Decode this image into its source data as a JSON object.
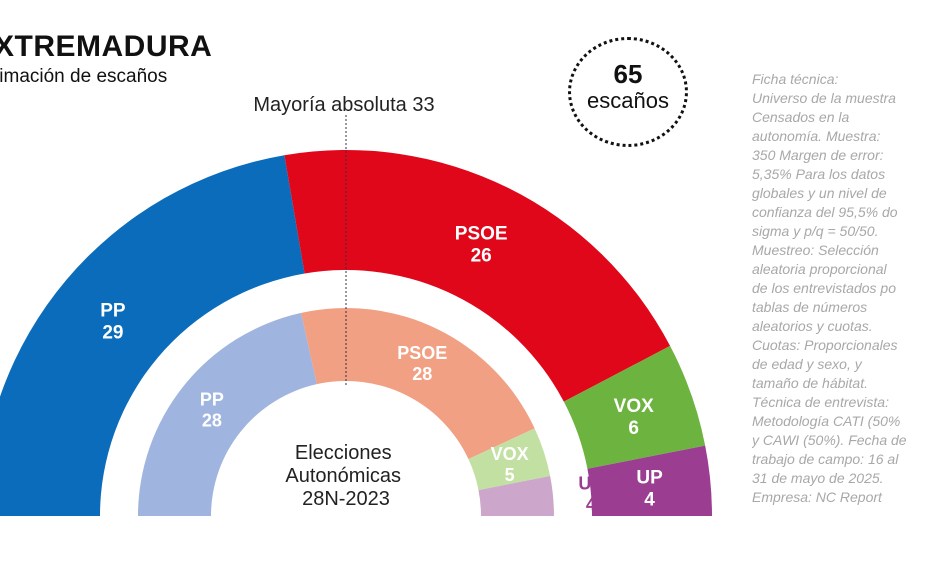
{
  "header": {
    "title": "XTREMADURA",
    "subtitle": "timación de escaños"
  },
  "badge": {
    "number": "65",
    "word": "escaños"
  },
  "tech_sheet": "Ficha técnica:\nUniverso de la muestra\nCensados en la\nautonomía. Muestra:\n350 Margen de error:\n5,35% Para los datos\nglobales y un nivel de\nconfianza del 95,5% do\nsigma y p/q = 50/50.\nMuestreo: Selección\naleatoria proporcional\nde los entrevistados po\ntablas de números\naleatorios y cuotas.\nCuotas: Proporcionales\nde edad y sexo, y\ntamaño de hábitat.\nTécnica de entrevista:\nMetodología CATI (50%\ny CAWI (50%). Fecha de\ntrabajo de campo: 16 al\n31 de mayo de 2025.\nEmpresa: NC Report",
  "chart_data": [
    {
      "type": "pie",
      "subtype": "parliament-hemicycle",
      "total_seats": 65,
      "majority_label": "Mayoría absoluta 33",
      "categories": [
        "PP",
        "PSOE",
        "VOX",
        "UP"
      ],
      "values": [
        29,
        26,
        6,
        4
      ],
      "colors": [
        "#0a6cba",
        "#e0071b",
        "#6db33f",
        "#9b3e92"
      ]
    },
    {
      "type": "pie",
      "subtype": "parliament-hemicycle",
      "center_label": [
        "Elecciones",
        "Autonómicas",
        "28N-2023"
      ],
      "categories": [
        "PP",
        "PSOE",
        "VOX",
        "UP"
      ],
      "values": [
        28,
        28,
        5,
        4
      ],
      "colors": [
        "#9fb4de",
        "#f1a084",
        "#c3e0a3",
        "#cda6cc"
      ],
      "label_colors": [
        "#ffffff",
        "#ffffff",
        "#ffffff",
        "#9b3e92"
      ]
    }
  ]
}
